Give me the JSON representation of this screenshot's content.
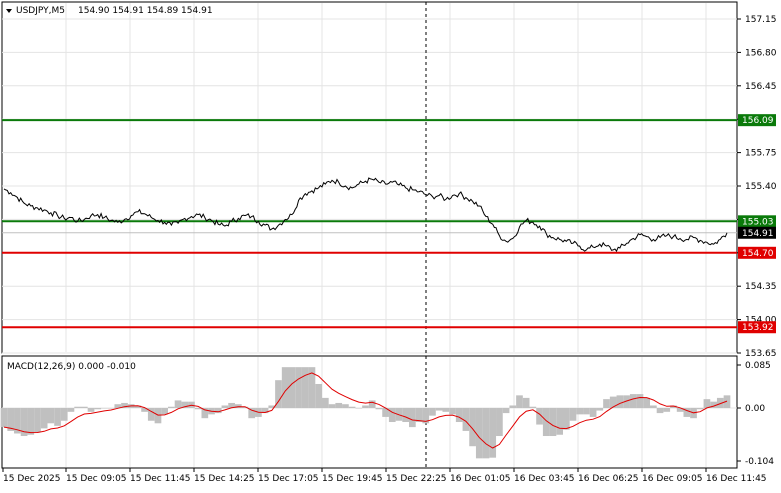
{
  "header": {
    "symbol_label": "USDJPY,M5",
    "ohlc": "154.90 154.91 154.89 154.91"
  },
  "price_axis": {
    "ticks": [
      "157.15",
      "156.80",
      "156.45",
      "156.10",
      "155.75",
      "155.40",
      "155.05",
      "154.70",
      "154.35",
      "154.00",
      "153.65"
    ]
  },
  "levels": [
    {
      "label": "156.09",
      "color": "#0a7a0a",
      "kind": "resistance"
    },
    {
      "label": "155.03",
      "color": "#0a7a0a",
      "kind": "resistance"
    },
    {
      "label": "154.70",
      "color": "#e00000",
      "kind": "support"
    },
    {
      "label": "153.92",
      "color": "#e00000",
      "kind": "support"
    }
  ],
  "current_price": {
    "label": "154.91",
    "color": "#000000"
  },
  "macd": {
    "title": "MACD(12,26,9) 0.000 -0.010",
    "ticks": [
      "0.085",
      "0.00",
      "-0.104"
    ],
    "histogram_color": "#c0c0c0",
    "signal_color": "#e00000"
  },
  "time_axis": {
    "labels": [
      "15 Dec 2025",
      "15 Dec 09:05",
      "15 Dec 11:45",
      "15 Dec 14:25",
      "15 Dec 17:05",
      "15 Dec 19:45",
      "15 Dec 22:25",
      "16 Dec 01:05",
      "16 Dec 03:45",
      "16 Dec 06:25",
      "16 Dec 09:05",
      "16 Dec 11:45"
    ]
  },
  "chart_data": {
    "type": "line",
    "title": "USDJPY,M5",
    "ylim": [
      153.65,
      157.3
    ],
    "close": [
      155.37,
      155.33,
      155.28,
      155.22,
      155.19,
      155.17,
      155.15,
      155.12,
      155.09,
      155.06,
      155.07,
      155.03,
      155.05,
      155.09,
      155.1,
      155.07,
      155.04,
      155.02,
      155.05,
      155.09,
      155.13,
      155.11,
      155.07,
      155.04,
      155.02,
      154.99,
      155.01,
      155.06,
      155.08,
      155.1,
      155.07,
      155.04,
      155.0,
      154.98,
      155.03,
      155.06,
      155.09,
      155.08,
      155.03,
      154.99,
      154.95,
      154.99,
      155.05,
      155.1,
      155.25,
      155.32,
      155.35,
      155.38,
      155.42,
      155.46,
      155.44,
      155.4,
      155.38,
      155.42,
      155.45,
      155.47,
      155.44,
      155.42,
      155.44,
      155.41,
      155.38,
      155.36,
      155.34,
      155.31,
      155.29,
      155.3,
      155.26,
      155.3,
      155.32,
      155.28,
      155.24,
      155.19,
      155.08,
      155.0,
      154.88,
      154.82,
      154.85,
      154.97,
      155.04,
      155.02,
      154.98,
      154.9,
      154.86,
      154.84,
      154.82,
      154.8,
      154.77,
      154.73,
      154.76,
      154.79,
      154.77,
      154.73,
      154.75,
      154.8,
      154.85,
      154.89,
      154.87,
      154.84,
      154.86,
      154.88,
      154.87,
      154.85,
      154.84,
      154.86,
      154.83,
      154.81,
      154.79,
      154.84,
      154.91
    ]
  }
}
